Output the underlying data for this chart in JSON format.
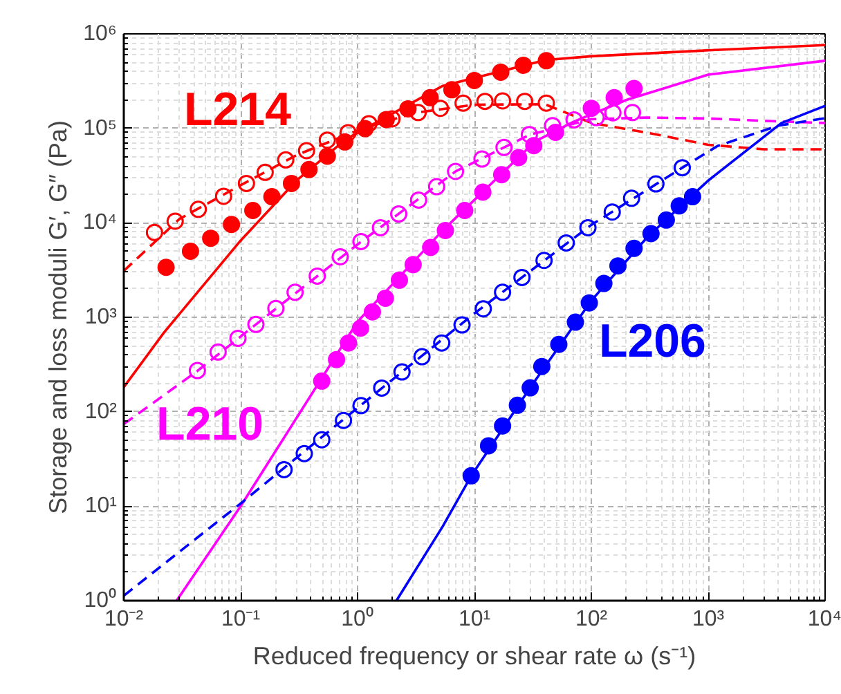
{
  "chart_data": {
    "type": "scatter",
    "xlabel": "Reduced frequency or shear rate ω (s⁻¹)",
    "ylabel": "Storage and loss moduli G′, G″ (Pa)",
    "log": "xy",
    "grid": true,
    "xlim": [
      0.01,
      10000
    ],
    "ylim": [
      1,
      1000000
    ],
    "xticks": [
      {
        "value": 0.01,
        "label": "10⁻²"
      },
      {
        "value": 0.1,
        "label": "10⁻¹"
      },
      {
        "value": 1,
        "label": "10⁰"
      },
      {
        "value": 10,
        "label": "10¹"
      },
      {
        "value": 100,
        "label": "10²"
      },
      {
        "value": 1000,
        "label": "10³"
      },
      {
        "value": 10000,
        "label": "10⁴"
      }
    ],
    "yticks": [
      {
        "value": 1,
        "label": "10⁰"
      },
      {
        "value": 10,
        "label": "10¹"
      },
      {
        "value": 100,
        "label": "10²"
      },
      {
        "value": 1000,
        "label": "10³"
      },
      {
        "value": 10000,
        "label": "10⁴"
      },
      {
        "value": 100000,
        "label": "10⁵"
      },
      {
        "value": 1000000,
        "label": "10⁶"
      }
    ],
    "series": [
      {
        "type": "line",
        "name": "L214",
        "line_style": "solid",
        "color": "#ff0000",
        "x": [
          0.01,
          0.022,
          0.1,
          0.3,
          0.8,
          5.3,
          41,
          100,
          1000,
          10000
        ],
        "values": [
          182,
          686,
          6500,
          28000,
          77000,
          280000,
          530000,
          580000,
          670000,
          760000
        ]
      },
      {
        "type": "line",
        "line_style": "dashed",
        "color": "#ff0000",
        "x": [
          0.01,
          0.03,
          0.1,
          0.3,
          1,
          3,
          10,
          40,
          100,
          300,
          1000,
          3000,
          10000
        ],
        "values": [
          3100,
          11000,
          25000,
          52000,
          95000,
          145000,
          178000,
          180000,
          114000,
          90000,
          67000,
          60000,
          60000
        ]
      },
      {
        "type": "line",
        "name": "L210",
        "line_style": "solid",
        "color": "#ff00ff",
        "x": [
          0.0283,
          0.1,
          1,
          5.35,
          33,
          71,
          200,
          1000,
          10000
        ],
        "values": [
          1,
          10,
          900,
          8300,
          72600,
          118000,
          200000,
          370000,
          520000
        ]
      },
      {
        "type": "line",
        "line_style": "dashed",
        "color": "#ff00ff",
        "x": [
          0.01,
          0.0426,
          0.135,
          1.07,
          6.9,
          30,
          100,
          300,
          1000,
          3000,
          10000
        ],
        "values": [
          74,
          270,
          840,
          6300,
          35000,
          86000,
          125000,
          130000,
          127000,
          120000,
          114000
        ]
      },
      {
        "type": "line",
        "name": "L206",
        "line_style": "solid",
        "color": "#0000ff",
        "x": [
          2.15,
          5.35,
          9.4,
          30,
          100,
          300,
          1000,
          4240,
          10000
        ],
        "values": [
          1,
          6.1,
          21,
          180,
          1500,
          7000,
          28000,
          114000,
          173000
        ]
      },
      {
        "type": "line",
        "line_style": "dashed",
        "color": "#0000ff",
        "x": [
          0.01,
          0.1,
          1,
          10,
          100,
          600,
          1200,
          4000,
          10000
        ],
        "values": [
          1.13,
          10.7,
          110,
          1100,
          9500,
          38300,
          65000,
          107000,
          128000
        ]
      },
      {
        "marker": "circle_open",
        "color": "#ff0000",
        "x": [
          0.0183,
          0.0275,
          0.0434,
          0.0714,
          0.112,
          0.162,
          0.243,
          0.366,
          0.551,
          0.83,
          1.25,
          1.97,
          3.3,
          5.11,
          8,
          12.3,
          17.4,
          26.9,
          41.2
        ],
        "values": [
          7900,
          10400,
          13900,
          19100,
          26100,
          34200,
          46300,
          58000,
          75100,
          90000,
          112000,
          126000,
          147000,
          163000,
          185000,
          193000,
          195000,
          193000,
          185000
        ]
      },
      {
        "marker": "circle",
        "color": "#ff0000",
        "x": [
          0.023,
          0.0372,
          0.0554,
          0.0834,
          0.127,
          0.185,
          0.272,
          0.384,
          0.551,
          0.778,
          1.16,
          1.76,
          2.7,
          4.18,
          6.41,
          9.98,
          16.8,
          26.2,
          41.2
        ],
        "values": [
          3380,
          5000,
          6860,
          9600,
          13500,
          18900,
          26100,
          36600,
          50700,
          71800,
          99300,
          124000,
          161000,
          211000,
          256000,
          321000,
          393000,
          465000,
          520000
        ]
      },
      {
        "marker": "circle_open",
        "color": "#ff00ff",
        "x": [
          0.0426,
          0.0641,
          0.0948,
          0.135,
          0.2,
          0.292,
          0.452,
          0.711,
          1.07,
          1.57,
          2.25,
          3.33,
          4.75,
          6.89,
          11.6,
          17.9,
          29.5,
          46.6,
          71.2,
          110,
          153,
          225
        ],
        "values": [
          273,
          428,
          599,
          840,
          1240,
          1840,
          2730,
          4370,
          6340,
          8880,
          12400,
          17400,
          24100,
          35000,
          47300,
          62700,
          85900,
          107000,
          123000,
          130000,
          146000,
          147000
        ]
      },
      {
        "marker": "circle",
        "color": "#ff00ff",
        "x": [
          0.494,
          0.661,
          0.837,
          1.06,
          1.34,
          1.73,
          2.28,
          2.99,
          4.22,
          5.64,
          8.26,
          11.8,
          17.1,
          23.9,
          32.2,
          49.4,
          100,
          157,
          232
        ],
        "values": [
          211,
          357,
          535,
          767,
          1140,
          1590,
          2470,
          3610,
          5480,
          8300,
          13500,
          21100,
          32300,
          49000,
          65600,
          90800,
          163000,
          211000,
          264000
        ]
      },
      {
        "marker": "circle_open",
        "color": "#0000ff",
        "x": [
          0.235,
          0.35,
          0.494,
          0.758,
          1.07,
          1.61,
          2.4,
          3.56,
          5.25,
          7.83,
          11.9,
          17.4,
          25.5,
          39.4,
          61,
          93.5,
          151,
          221,
          357,
          600
        ],
        "values": [
          24.4,
          36.1,
          50.5,
          80.9,
          116,
          178,
          264,
          382,
          535,
          830,
          1230,
          1840,
          2640,
          4000,
          6130,
          8880,
          13000,
          18200,
          25800,
          38300
        ]
      },
      {
        "marker": "circle",
        "color": "#0000ff",
        "x": [
          9.38,
          13.2,
          17.4,
          23.3,
          30,
          37.7,
          52.7,
          73.1,
          96.1,
          128,
          169,
          232,
          324,
          438,
          565,
          735
        ],
        "values": [
          21,
          43.6,
          70.8,
          117,
          179,
          301,
          516,
          887,
          1420,
          2280,
          3500,
          5360,
          7680,
          10700,
          15100,
          18900
        ]
      }
    ]
  }
}
